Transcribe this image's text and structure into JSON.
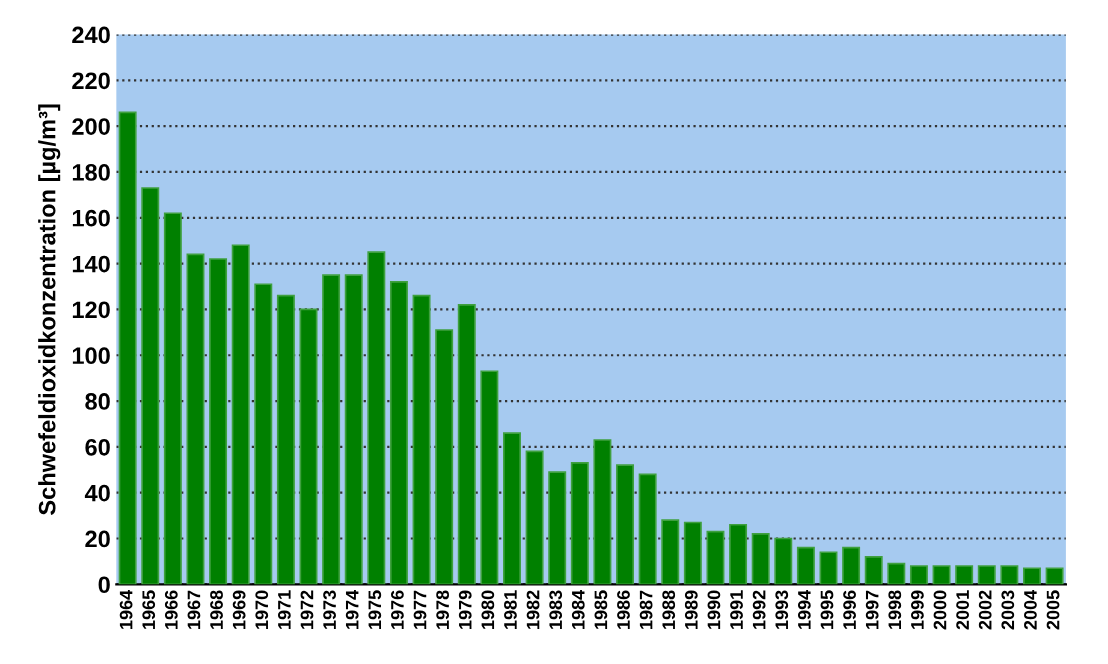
{
  "chart_data": {
    "type": "bar",
    "ylabel": "Schwefeldioxidkonzentration [µg/m³]",
    "categories": [
      "1964",
      "1965",
      "1966",
      "1967",
      "1968",
      "1969",
      "1970",
      "1971",
      "1972",
      "1973",
      "1974",
      "1975",
      "1976",
      "1977",
      "1978",
      "1979",
      "1980",
      "1981",
      "1982",
      "1983",
      "1984",
      "1985",
      "1986",
      "1987",
      "1988",
      "1989",
      "1990",
      "1991",
      "1992",
      "1993",
      "1994",
      "1995",
      "1996",
      "1997",
      "1998",
      "1999",
      "2000",
      "2001",
      "2002",
      "2003",
      "2004",
      "2005"
    ],
    "values": [
      206,
      173,
      162,
      144,
      142,
      148,
      131,
      126,
      120,
      135,
      135,
      145,
      132,
      126,
      111,
      122,
      93,
      66,
      58,
      49,
      53,
      63,
      52,
      48,
      28,
      27,
      23,
      26,
      22,
      20,
      16,
      14,
      16,
      12,
      9,
      8,
      8,
      8,
      8,
      8,
      7,
      7
    ],
    "color": "#008000",
    "ylim": [
      0,
      240
    ],
    "yticks": [
      0,
      20,
      40,
      60,
      80,
      100,
      120,
      140,
      160,
      180,
      200,
      220,
      240
    ],
    "grid": "y",
    "line_style": "dotted"
  }
}
